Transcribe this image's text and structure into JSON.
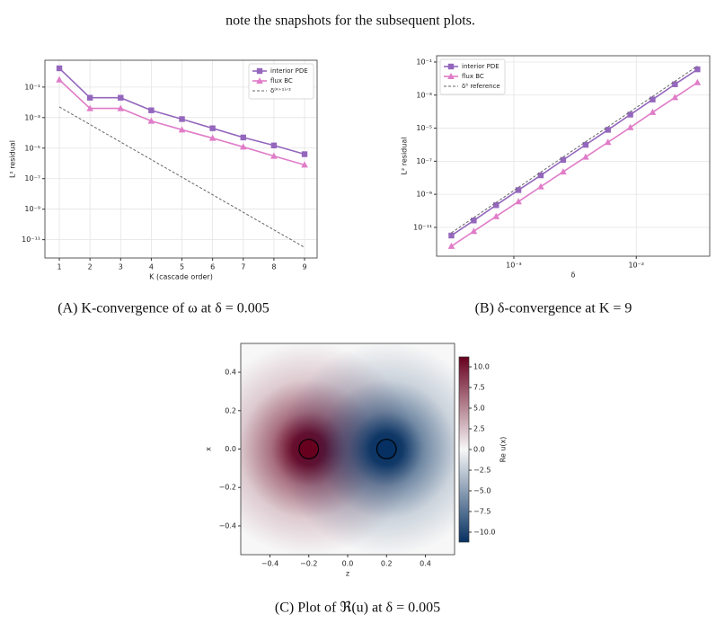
{
  "text": {
    "intro": "note the snapshots for the subsequent plots."
  },
  "captions": [
    "(A) K-convergence of ω at δ = 0.005",
    "(B) δ-convergence at K = 9",
    "(C) Plot of ℜ(u) at δ = 0.005"
  ],
  "chart_data": [
    {
      "type": "line",
      "xlabel": "K (cascade order)",
      "ylabel": "L² residual",
      "x": [
        1,
        2,
        3,
        4,
        5,
        6,
        7,
        8,
        9
      ],
      "xlim": [
        0.53,
        9.41
      ],
      "xticks": [
        1,
        2,
        3,
        4,
        5,
        6,
        7,
        8,
        9
      ],
      "ylog": true,
      "ylim": [
        6.3e-13,
        5.75
      ],
      "yticks": [
        {
          "value": 1e-11,
          "label": "10⁻¹¹"
        },
        {
          "value": 1e-09,
          "label": "10⁻⁹"
        },
        {
          "value": 1e-07,
          "label": "10⁻⁷"
        },
        {
          "value": 1e-05,
          "label": "10⁻⁵"
        },
        {
          "value": 0.001,
          "label": "10⁻³"
        },
        {
          "value": 0.1,
          "label": "10⁻¹"
        }
      ],
      "grid": true,
      "legend": "upper right",
      "series": [
        {
          "name": "interior PDE",
          "color": "#9467bd",
          "marker": "square",
          "values": [
            1.7,
            0.02,
            0.02,
            0.003,
            0.0008,
            0.0002,
            5e-05,
            1.5e-05,
            4e-06
          ]
        },
        {
          "name": "flux BC",
          "color": "#e07cc8",
          "marker": "triangle",
          "values": [
            0.3,
            0.004,
            0.004,
            0.0006,
            0.00016,
            4.5e-05,
            1.2e-05,
            3e-06,
            8e-07
          ]
        },
        {
          "name": "δ⁽ᴷ⁺¹⁾ᐟ²",
          "color": "#666666",
          "dashed": true,
          "values": [
            0.005,
            0.000354,
            2.5e-05,
            1.77e-06,
            1.25e-07,
            8.84e-09,
            6.25e-10,
            4.42e-11,
            3.125e-12
          ]
        }
      ]
    },
    {
      "type": "line",
      "xlabel": "δ",
      "ylabel": "L² residual",
      "xlog": true,
      "x": [
        0.000309,
        0.000471,
        0.000717,
        0.00109,
        0.00166,
        0.00253,
        0.00386,
        0.00587,
        0.00894,
        0.0136,
        0.0207,
        0.0316
      ],
      "xlim": [
        0.000234,
        0.0398
      ],
      "xticks": [
        {
          "value": 0.001,
          "label": "10⁻³"
        },
        {
          "value": 0.01,
          "label": "10⁻²"
        }
      ],
      "ylog": true,
      "ylim": [
        1.8e-13,
        0.24
      ],
      "yticks": [
        {
          "value": 1e-11,
          "label": "10⁻¹¹"
        },
        {
          "value": 1e-09,
          "label": "10⁻⁹"
        },
        {
          "value": 1e-07,
          "label": "10⁻⁷"
        },
        {
          "value": 1e-05,
          "label": "10⁻⁵"
        },
        {
          "value": 0.001,
          "label": "10⁻³"
        },
        {
          "value": 0.1,
          "label": "10⁻¹"
        }
      ],
      "grid": true,
      "legend": "upper left",
      "series": [
        {
          "name": "interior PDE",
          "color": "#9467bd",
          "marker": "square",
          "values": [
            3.2e-12,
            2.6e-11,
            2.2e-10,
            1.8e-09,
            1.4e-08,
            1.2e-07,
            9.8e-07,
            7.9e-06,
            6.6e-05,
            0.00054,
            0.0045,
            0.036
          ]
        },
        {
          "name": "flux BC",
          "color": "#e07cc8",
          "marker": "triangle",
          "values": [
            7.2e-13,
            5.8e-12,
            4.6e-11,
            3.6e-10,
            2.9e-09,
            2.3e-08,
            1.8e-07,
            1.4e-06,
            1.1e-05,
            9.1e-05,
            0.00072,
            0.0058
          ]
        },
        {
          "name": "δ⁵ reference",
          "color": "#666666",
          "dashed": true,
          "values": [
            4.7e-12,
            3.9e-11,
            3.2e-10,
            2.6e-09,
            2.2e-08,
            1.8e-07,
            1.5e-06,
            1.2e-05,
            0.0001,
            0.00083,
            0.0069,
            0.058
          ]
        }
      ]
    },
    {
      "type": "heatmap",
      "xlabel": "z",
      "ylabel": "x",
      "colorbar_label": "Re u(x)",
      "colormap": [
        "#053061",
        "#f7f7f7",
        "#67001f"
      ],
      "xlim": [
        -0.55,
        0.55
      ],
      "ylim": [
        -0.55,
        0.55
      ],
      "xticks": [
        {
          "value": -0.4,
          "label": "−0.4"
        },
        {
          "value": -0.2,
          "label": "−0.2"
        },
        {
          "value": 0,
          "label": "0.0"
        },
        0.2,
        0.4
      ],
      "yticks": [
        {
          "value": -0.4,
          "label": "−0.4"
        },
        {
          "value": -0.2,
          "label": "−0.2"
        },
        {
          "value": 0,
          "label": "0.0"
        },
        0.2,
        0.4
      ],
      "clim": [
        -11.2,
        11.2
      ],
      "cticks": [
        {
          "value": -10,
          "label": "−10.0"
        },
        {
          "value": -7.5,
          "label": "−7.5"
        },
        {
          "value": -5,
          "label": "−5.0"
        },
        {
          "value": -2.5,
          "label": "−2.5"
        },
        {
          "value": 0,
          "label": "0.0"
        },
        2.5,
        {
          "value": 5,
          "label": "5.0"
        },
        7.5,
        {
          "value": 10,
          "label": "10.0"
        }
      ],
      "inclusions": [
        {
          "z": -0.2,
          "x": 0,
          "r": 0.05,
          "value": 11.2
        },
        {
          "z": 0.2,
          "x": 0,
          "r": 0.05,
          "value": -11.2
        }
      ]
    }
  ]
}
